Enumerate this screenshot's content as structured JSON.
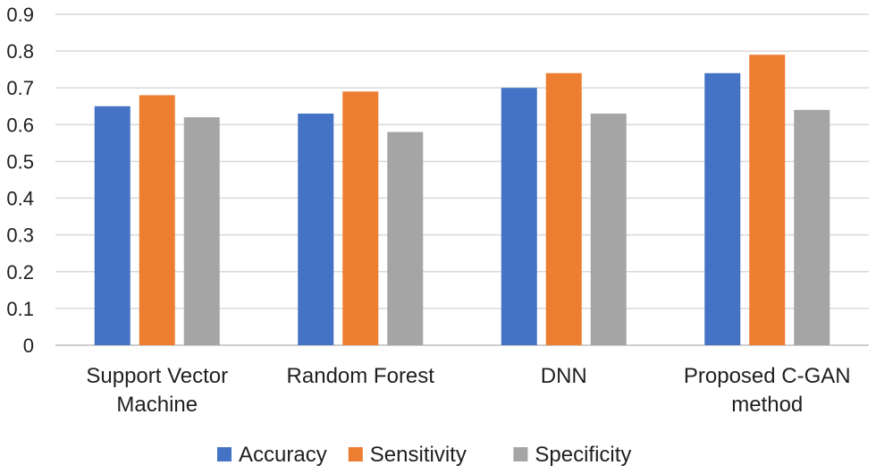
{
  "chart_data": {
    "type": "bar",
    "title": "",
    "xlabel": "",
    "ylabel": "",
    "ylim": [
      0,
      0.9
    ],
    "yticks": [
      "0",
      "0.1",
      "0.2",
      "0.3",
      "0.4",
      "0.5",
      "0.6",
      "0.7",
      "0.8",
      "0.9"
    ],
    "grid": true,
    "legend_position": "bottom",
    "categories": [
      [
        "Support Vector",
        "Machine"
      ],
      [
        "Random Forest"
      ],
      [
        "DNN"
      ],
      [
        "Proposed C-GAN",
        "method"
      ]
    ],
    "series": [
      {
        "name": "Accuracy",
        "color": "#4472c4",
        "values": [
          0.65,
          0.63,
          0.7,
          0.74
        ]
      },
      {
        "name": "Sensitivity",
        "color": "#ed7d31",
        "values": [
          0.68,
          0.69,
          0.74,
          0.79
        ]
      },
      {
        "name": "Specificity",
        "color": "#a5a5a5",
        "values": [
          0.62,
          0.58,
          0.63,
          0.64
        ]
      }
    ]
  }
}
